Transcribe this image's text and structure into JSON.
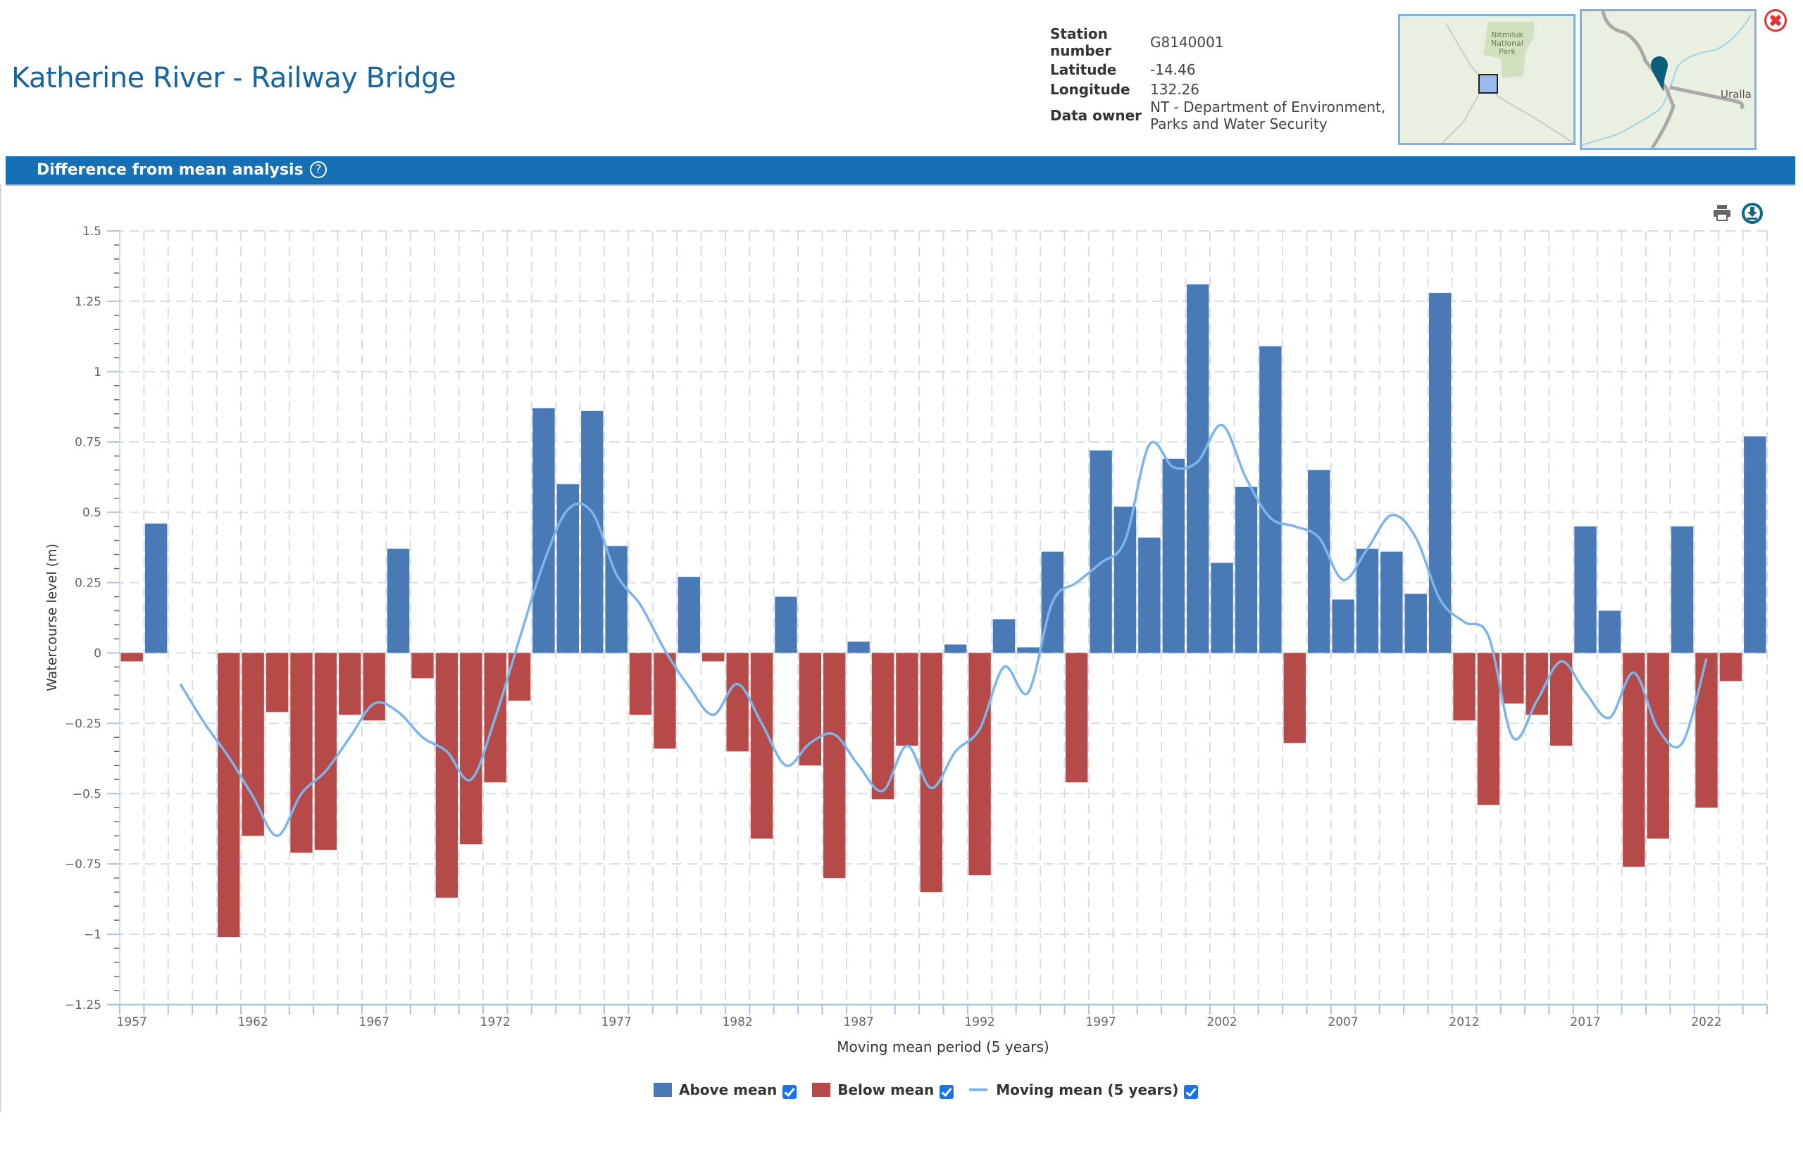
{
  "station": {
    "title": "Katherine River - Railway Bridge",
    "fields": [
      {
        "label": "Station number",
        "value": "G8140001"
      },
      {
        "label": "Latitude",
        "value": "-14.46"
      },
      {
        "label": "Longitude",
        "value": "132.26"
      },
      {
        "label": "Data owner",
        "value": "NT - Department of Environment, Parks and Water Security"
      }
    ],
    "station_number_label_line1": "Station",
    "station_number_label_line2": "number",
    "data_owner_line1": "NT - Department of Environment,",
    "data_owner_line2": "Parks and Water Security"
  },
  "maps": {
    "overview_label_line1": "Nitmiluk",
    "overview_label_line2": "National",
    "overview_label_line3": "Park",
    "detail_label": "Uralla"
  },
  "section": {
    "title": "Difference from mean analysis",
    "help_glyph": "?"
  },
  "toolbar": {
    "print_icon": "printer-icon",
    "download_icon": "download-icon",
    "close_icon": "close-icon"
  },
  "colors": {
    "above": "#4a7ab5",
    "below": "#b54a48",
    "line": "#7cb5ec",
    "header_bar": "#1570b5",
    "title": "#1566a0"
  },
  "chart_data": {
    "type": "bar",
    "title": "Difference from mean analysis",
    "xlabel": "Moving mean period (5 years)",
    "ylabel": "Watercourse level (m)",
    "ylim": [
      -1.25,
      1.5
    ],
    "yticks": [
      1.5,
      1.25,
      1,
      0.75,
      0.5,
      0.25,
      0,
      -0.25,
      -0.5,
      -0.75,
      -1,
      -1.25
    ],
    "ytick_labels": [
      "1.5",
      "1.25",
      "1",
      "0.75",
      "0.5",
      "0.25",
      "0",
      "−0.25",
      "−0.5",
      "−0.75",
      "−1",
      "−1.25"
    ],
    "xtick_labels": [
      "1957",
      "1962",
      "1967",
      "1972",
      "1977",
      "1982",
      "1987",
      "1992",
      "1997",
      "2002",
      "2007",
      "2012",
      "2017",
      "2022"
    ],
    "grid": true,
    "legend_position": "bottom-center",
    "categories": [
      1957,
      1958,
      1959,
      1960,
      1961,
      1962,
      1963,
      1964,
      1965,
      1966,
      1967,
      1968,
      1969,
      1970,
      1971,
      1972,
      1973,
      1974,
      1975,
      1976,
      1977,
      1978,
      1979,
      1980,
      1981,
      1982,
      1983,
      1984,
      1985,
      1986,
      1987,
      1988,
      1989,
      1990,
      1991,
      1992,
      1993,
      1994,
      1995,
      1996,
      1997,
      1998,
      1999,
      2000,
      2001,
      2002,
      2003,
      2004,
      2005,
      2006,
      2007,
      2008,
      2009,
      2010,
      2011,
      2012,
      2013,
      2014,
      2015,
      2016,
      2017,
      2018,
      2019,
      2020,
      2021,
      2022,
      2023,
      2024
    ],
    "series": [
      {
        "name": "Difference from mean",
        "values": [
          -0.03,
          0.46,
          null,
          null,
          -1.01,
          -0.65,
          -0.21,
          -0.71,
          -0.7,
          -0.22,
          -0.24,
          0.37,
          -0.09,
          -0.87,
          -0.68,
          -0.46,
          -0.17,
          0.87,
          0.6,
          0.86,
          0.38,
          -0.22,
          -0.34,
          0.27,
          -0.03,
          -0.35,
          -0.66,
          0.2,
          -0.4,
          -0.8,
          0.04,
          -0.52,
          -0.33,
          -0.85,
          0.03,
          -0.79,
          0.12,
          0.02,
          0.36,
          -0.46,
          0.72,
          0.52,
          0.41,
          0.69,
          1.31,
          0.32,
          0.59,
          1.09,
          -0.32,
          0.65,
          0.19,
          0.37,
          0.36,
          0.21,
          1.28,
          -0.24,
          -0.54,
          -0.18,
          -0.22,
          -0.33,
          0.45,
          0.15,
          -0.76,
          -0.66,
          0.45,
          -0.55,
          -0.1,
          0.77
        ]
      },
      {
        "name": "Moving mean (5 years)",
        "type": "line",
        "values": [
          null,
          null,
          -0.11,
          -0.25,
          -0.37,
          -0.51,
          -0.65,
          -0.5,
          -0.42,
          -0.3,
          -0.18,
          -0.21,
          -0.3,
          -0.35,
          -0.45,
          -0.23,
          0.05,
          0.32,
          0.51,
          0.5,
          0.28,
          0.17,
          0.01,
          -0.12,
          -0.22,
          -0.11,
          -0.25,
          -0.4,
          -0.32,
          -0.29,
          -0.4,
          -0.49,
          -0.33,
          -0.48,
          -0.35,
          -0.27,
          -0.05,
          -0.14,
          0.18,
          0.25,
          0.32,
          0.4,
          0.74,
          0.66,
          0.68,
          0.81,
          0.62,
          0.48,
          0.45,
          0.41,
          0.26,
          0.37,
          0.49,
          0.41,
          0.19,
          0.11,
          0.06,
          -0.3,
          -0.17,
          -0.03,
          -0.14,
          -0.23,
          -0.07,
          -0.27,
          -0.32,
          -0.02,
          null,
          null
        ]
      }
    ],
    "legend": [
      {
        "label": "Above mean",
        "checked": true
      },
      {
        "label": "Below mean",
        "checked": true
      },
      {
        "label": "Moving mean (5 years)",
        "checked": true
      }
    ]
  }
}
